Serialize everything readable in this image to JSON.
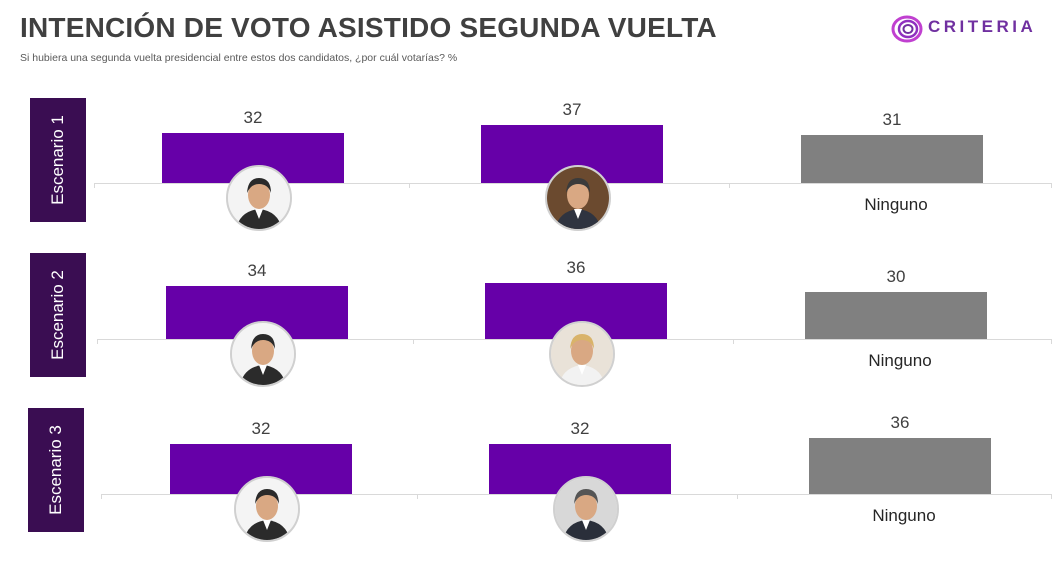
{
  "header": {
    "title": "INTENCIÓN DE VOTO ASISTIDO SEGUNDA VUELTA",
    "subtitle": "Si hubiera una segunda vuelta presidencial entre estos dos candidatos, ¿por cuál votarías? %",
    "logo_text": "CRITERIA"
  },
  "colors": {
    "candidate_bar": "#6600a8",
    "none_bar": "#808080",
    "tab": "#3a0d52",
    "logo": "#7030a0"
  },
  "chart_data": [
    {
      "type": "bar",
      "title": "Escenario 1",
      "categories": [
        "candidate-photo-1",
        "candidate-photo-2",
        "Ninguno"
      ],
      "values": [
        32,
        37,
        31
      ],
      "ylim": [
        0,
        40
      ]
    },
    {
      "type": "bar",
      "title": "Escenario 2",
      "categories": [
        "candidate-photo-1",
        "candidate-photo-3",
        "Ninguno"
      ],
      "values": [
        34,
        36,
        30
      ],
      "ylim": [
        0,
        40
      ]
    },
    {
      "type": "bar",
      "title": "Escenario 3",
      "categories": [
        "candidate-photo-1",
        "candidate-photo-4",
        "Ninguno"
      ],
      "values": [
        32,
        32,
        36
      ],
      "ylim": [
        0,
        40
      ]
    }
  ]
}
